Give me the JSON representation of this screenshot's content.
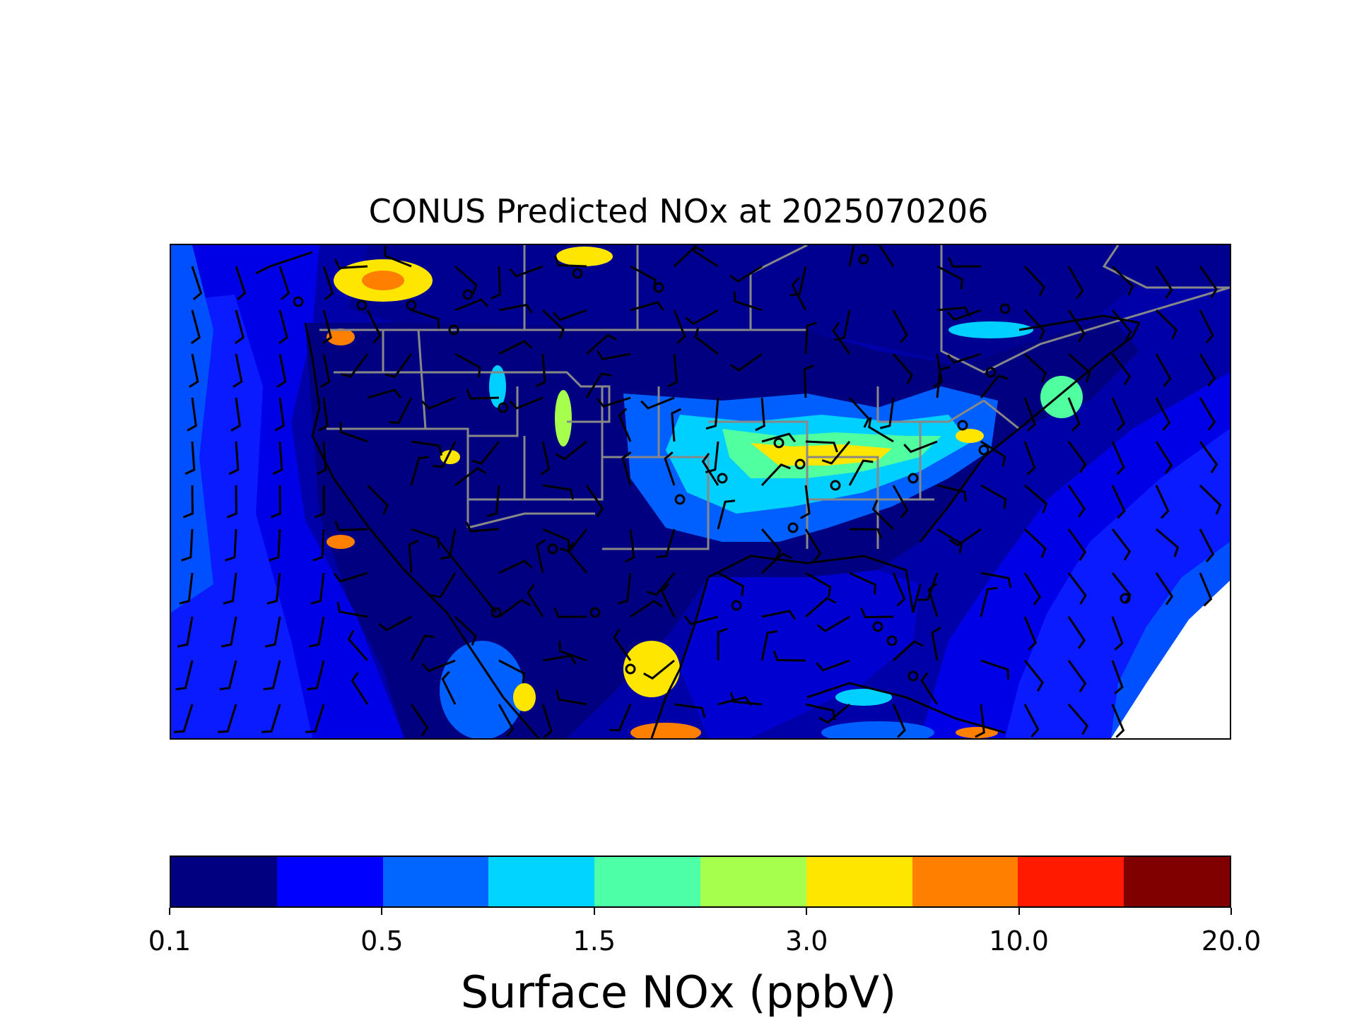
{
  "title": "CONUS Predicted NOx at 2025070206",
  "colorbar": {
    "label": "Surface NOx (ppbV)",
    "tick_labels": [
      "0.1",
      "0.5",
      "1.5",
      "3.0",
      "10.0",
      "20.0"
    ],
    "colors": [
      "#000080",
      "#0000ff",
      "#0066ff",
      "#00d4ff",
      "#4dffa6",
      "#a6ff4d",
      "#ffe600",
      "#ff8000",
      "#ff1a00",
      "#800000"
    ]
  },
  "map": {
    "background_colors": {
      "ocean_low": "#0000e0",
      "land_low": "#000080",
      "ocean_mid": "#0060ff",
      "state_lines": "#888888",
      "coast_lines": "#000000",
      "wind_barbs": "#000000"
    }
  }
}
